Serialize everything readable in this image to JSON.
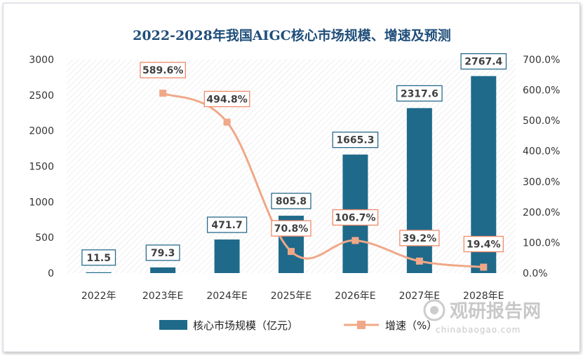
{
  "chart_data": {
    "type": "bar+line",
    "title": "2022-2028年我国AIGC核心市场规模、增速及预测",
    "categories": [
      "2022年",
      "2023年E",
      "2024年E",
      "2025年E",
      "2026年E",
      "2027年E",
      "2028年E"
    ],
    "series": [
      {
        "name": "核心市场规模（亿元）",
        "type": "bar",
        "axis": "left",
        "values": [
          11.5,
          79.3,
          471.7,
          805.8,
          1665.3,
          2317.6,
          2767.4
        ],
        "labels": [
          "11.5",
          "79.3",
          "471.7",
          "805.8",
          "1665.3",
          "2317.6",
          "2767.4"
        ],
        "color": "#1f6a8a"
      },
      {
        "name": "增速（%）",
        "type": "line",
        "axis": "right",
        "values": [
          null,
          589.6,
          494.8,
          70.8,
          106.7,
          39.2,
          19.4
        ],
        "labels": [
          "",
          "589.6%",
          "494.8%",
          "70.8%",
          "106.7%",
          "39.2%",
          "19.4%"
        ],
        "color": "#f0a888"
      }
    ],
    "y_left": {
      "min": 0,
      "max": 3000,
      "ticks": [
        "0",
        "500",
        "1000",
        "1500",
        "2000",
        "2500",
        "3000"
      ]
    },
    "y_right": {
      "min": 0,
      "max": 700,
      "ticks": [
        "0.0%",
        "100.0%",
        "200.0%",
        "300.0%",
        "400.0%",
        "500.0%",
        "600.0%",
        "700.0%"
      ]
    },
    "legend_position": "bottom"
  },
  "watermark": {
    "brand": "观研报告网",
    "site": "chinabaogao.com"
  },
  "colors": {
    "title": "#1f4e79",
    "bar": "#1f6a8a",
    "line": "#f0a888",
    "bar_label_border": "#2a6b8c",
    "line_label_border": "#f08a6a"
  }
}
